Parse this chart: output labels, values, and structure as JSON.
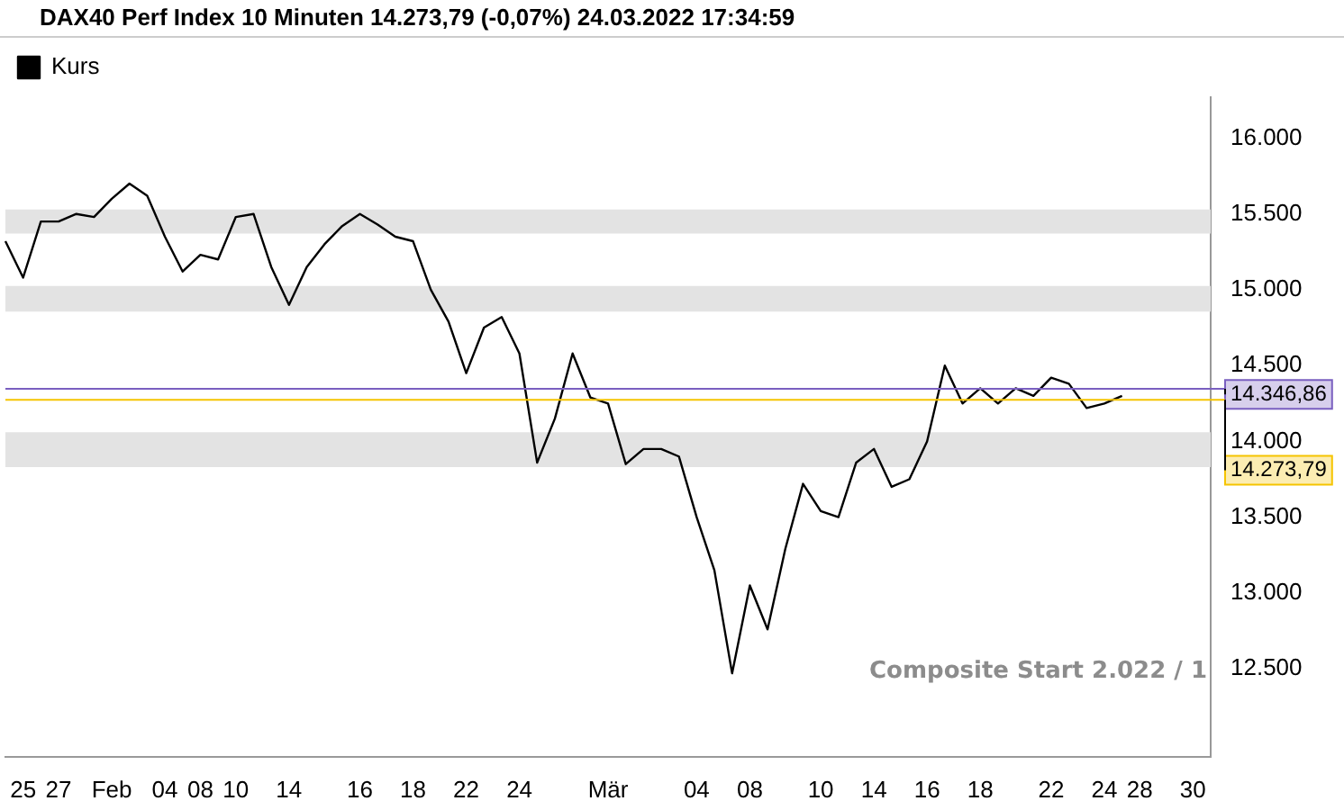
{
  "chart_data": {
    "type": "line",
    "title": "DAX40 Perf Index 10 Minuten 14.273,79 (-0,07%) 24.03.2022 17:34:59",
    "categories": [
      null,
      "25",
      null,
      "27",
      null,
      null,
      "Feb",
      null,
      null,
      "04",
      null,
      "08",
      null,
      "10",
      null,
      null,
      "14",
      null,
      null,
      null,
      "16",
      null,
      null,
      "18",
      null,
      null,
      "22",
      null,
      null,
      "24",
      null,
      null,
      null,
      null,
      "Mär",
      null,
      null,
      null,
      null,
      "04",
      null,
      null,
      "08",
      null,
      null,
      null,
      "10",
      null,
      null,
      "14",
      null,
      null,
      "16",
      null,
      null,
      "18",
      null,
      null,
      null,
      "22",
      null,
      null,
      "24",
      null,
      "28",
      null,
      null,
      "30",
      null
    ],
    "series": [
      {
        "name": "Kurs",
        "color": "#000000",
        "values": [
          15320,
          15080,
          15450,
          15450,
          15500,
          15480,
          15600,
          15700,
          15620,
          15350,
          15120,
          15230,
          15200,
          15480,
          15500,
          15150,
          14900,
          15150,
          15300,
          15420,
          15500,
          15430,
          15350,
          15320,
          15000,
          14790,
          14450,
          14750,
          14820,
          14580,
          13860,
          14150,
          14580,
          14290,
          14250,
          13850,
          13950,
          13950,
          13900,
          13500,
          13150,
          12470,
          13050,
          12760,
          13290,
          13720,
          13540,
          13500,
          13860,
          13950,
          13700,
          13750,
          14000,
          14500,
          14250,
          14350,
          14250,
          14350,
          14300,
          14420,
          14380,
          14220,
          14250,
          14300,
          null,
          null,
          null,
          null,
          null
        ]
      }
    ],
    "ylim": [
      11920,
      16270
    ],
    "yticks": [
      {
        "value": 12500,
        "label": "12.500"
      },
      {
        "value": 13000,
        "label": "13.000"
      },
      {
        "value": 13500,
        "label": "13.500"
      },
      {
        "value": 14000,
        "label": "14.000"
      },
      {
        "value": 14500,
        "label": "14.500"
      },
      {
        "value": 15000,
        "label": "15.000"
      },
      {
        "value": 15500,
        "label": "15.500"
      },
      {
        "value": 16000,
        "label": "16.000"
      }
    ],
    "bands": [
      {
        "axis": "y",
        "from": 15370,
        "to": 15530,
        "color": "#e3e3e3"
      },
      {
        "axis": "y",
        "from": 14855,
        "to": 15025,
        "color": "#e3e3e3"
      },
      {
        "axis": "y",
        "from": 13830,
        "to": 14060,
        "color": "#e3e3e3"
      }
    ],
    "ref_lines": [
      {
        "axis": "y",
        "value": 14346.86,
        "label": "14.346,86",
        "color": "#7a5fc0"
      },
      {
        "axis": "y",
        "value": 14273.79,
        "label": "14.273,79",
        "color": "#f5c400"
      }
    ],
    "annotations": [
      "Composite Start 2.022 / 1"
    ],
    "legend": "top left",
    "grid": false,
    "marker": "none",
    "line_style": "solid"
  }
}
